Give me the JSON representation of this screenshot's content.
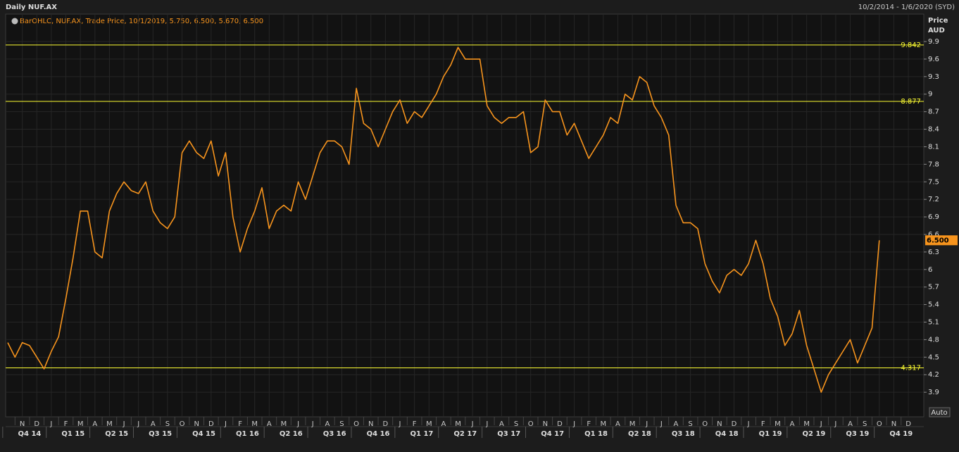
{
  "chart_data": {
    "type": "line",
    "title": "Daily NUF.AX",
    "date_range": "10/2/2014 - 1/6/2020 (SYD)",
    "legend": "BarOHLC, NUF.AX, Trade Price, 10/1/2019, 5.750, 6.500, 5.670, 6.500",
    "y_label": [
      "Price",
      "AUD"
    ],
    "scale_mode": "Auto",
    "color": "#f7941d",
    "categories": [
      null,
      null,
      "N",
      null,
      "D",
      null,
      "J",
      null,
      "F",
      null,
      "M",
      null,
      "A",
      null,
      "M",
      null,
      "J",
      null,
      "J",
      null,
      "A",
      null,
      "S",
      null,
      "O",
      null,
      "N",
      null,
      "D",
      null,
      "J",
      null,
      "F",
      null,
      "M",
      null,
      "A",
      null,
      "M",
      null,
      "J",
      null,
      "J",
      null,
      "A",
      null,
      "S",
      null,
      "O",
      null,
      "N",
      null,
      "D",
      null,
      "J",
      null,
      "F",
      null,
      "M",
      null,
      "A",
      null,
      "M",
      null,
      "J",
      null,
      "J",
      null,
      "A",
      null,
      "S",
      null,
      "O",
      null,
      "N",
      null,
      "D",
      null,
      "J",
      null,
      "F",
      null,
      "M",
      null,
      "A",
      null,
      "M",
      null,
      "J",
      null,
      "J",
      null,
      "A",
      null,
      "S",
      null,
      "O",
      null,
      "N",
      null,
      "D",
      null,
      "J",
      null,
      "F",
      null,
      "M",
      null,
      "A",
      null,
      "M",
      null,
      "J",
      null,
      "J",
      null,
      "A",
      null,
      "S",
      null,
      "O",
      null,
      "N",
      null,
      "D",
      null
    ],
    "values": [
      4.75,
      4.5,
      4.75,
      4.7,
      4.5,
      4.3,
      4.6,
      4.85,
      5.5,
      6.2,
      7.0,
      7.0,
      6.3,
      6.2,
      7.0,
      7.3,
      7.5,
      7.35,
      7.3,
      7.5,
      7.0,
      6.8,
      6.7,
      6.9,
      8.0,
      8.2,
      8.0,
      7.9,
      8.2,
      7.6,
      8.0,
      6.9,
      6.3,
      6.7,
      7.0,
      7.4,
      6.7,
      7.0,
      7.1,
      7.0,
      7.5,
      7.2,
      7.6,
      8.0,
      8.2,
      8.2,
      8.1,
      7.8,
      9.1,
      8.5,
      8.4,
      8.1,
      8.4,
      8.7,
      8.9,
      8.5,
      8.7,
      8.6,
      8.8,
      9.0,
      9.3,
      9.5,
      9.8,
      9.6,
      9.6,
      9.6,
      8.8,
      8.6,
      8.5,
      8.6,
      8.6,
      8.7,
      8.0,
      8.1,
      8.9,
      8.7,
      8.7,
      8.3,
      8.5,
      8.2,
      7.9,
      8.1,
      8.3,
      8.6,
      8.5,
      9.0,
      8.9,
      9.3,
      9.2,
      8.8,
      8.6,
      8.3,
      7.1,
      6.8,
      6.8,
      6.7,
      6.1,
      5.8,
      5.6,
      5.9,
      6.0,
      5.9,
      6.1,
      6.5,
      6.1,
      5.5,
      5.2,
      4.7,
      4.9,
      5.3,
      4.7,
      4.3,
      3.9,
      4.2,
      4.4,
      4.6,
      4.8,
      4.4,
      4.7,
      5.0,
      6.5,
      null,
      null,
      null,
      null,
      null
    ],
    "quarters": [
      "Q4 14",
      "Q1 15",
      "Q2 15",
      "Q3 15",
      "Q4 15",
      "Q1 16",
      "Q2 16",
      "Q3 16",
      "Q4 16",
      "Q1 17",
      "Q2 17",
      "Q3 17",
      "Q4 17",
      "Q1 18",
      "Q2 18",
      "Q3 18",
      "Q4 18",
      "Q1 19",
      "Q2 19",
      "Q3 19",
      "Q4 19"
    ],
    "ylim": [
      3.48,
      10.37
    ],
    "yticks": [
      3.9,
      4.2,
      4.5,
      4.8,
      5.1,
      5.4,
      5.7,
      6,
      6.3,
      6.6,
      6.9,
      7.2,
      7.5,
      7.8,
      8.1,
      8.4,
      8.7,
      9,
      9.3,
      9.6,
      9.9
    ],
    "hlines": [
      9.842,
      8.877,
      4.317
    ],
    "hline_color": "#ffff33",
    "last_price": {
      "value": 6.5,
      "label": "6.500"
    },
    "grid": true
  }
}
